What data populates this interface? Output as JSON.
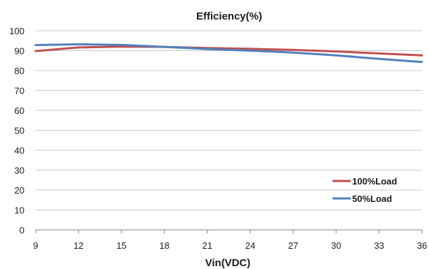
{
  "chart_data": {
    "type": "line",
    "title": "Efficiency(%)",
    "xlabel": "Vin(VDC)",
    "ylabel": "",
    "x": [
      9,
      12,
      15,
      18,
      21,
      24,
      27,
      30,
      33,
      36
    ],
    "xlim": [
      9,
      36
    ],
    "ylim": [
      0,
      100
    ],
    "yticks": [
      0,
      10,
      20,
      30,
      40,
      50,
      60,
      70,
      80,
      90,
      100
    ],
    "grid": "horizontal",
    "legend_position": "right",
    "series": [
      {
        "name": "100%Load",
        "color": "#c0504d",
        "values": [
          89.8,
          91.6,
          92.0,
          91.9,
          91.3,
          90.9,
          90.4,
          89.6,
          88.6,
          87.6
        ]
      },
      {
        "name": "50%Load",
        "color": "#4f81bd",
        "values": [
          92.8,
          93.2,
          92.9,
          91.9,
          90.8,
          90.0,
          89.0,
          87.6,
          85.9,
          84.3
        ]
      }
    ]
  }
}
